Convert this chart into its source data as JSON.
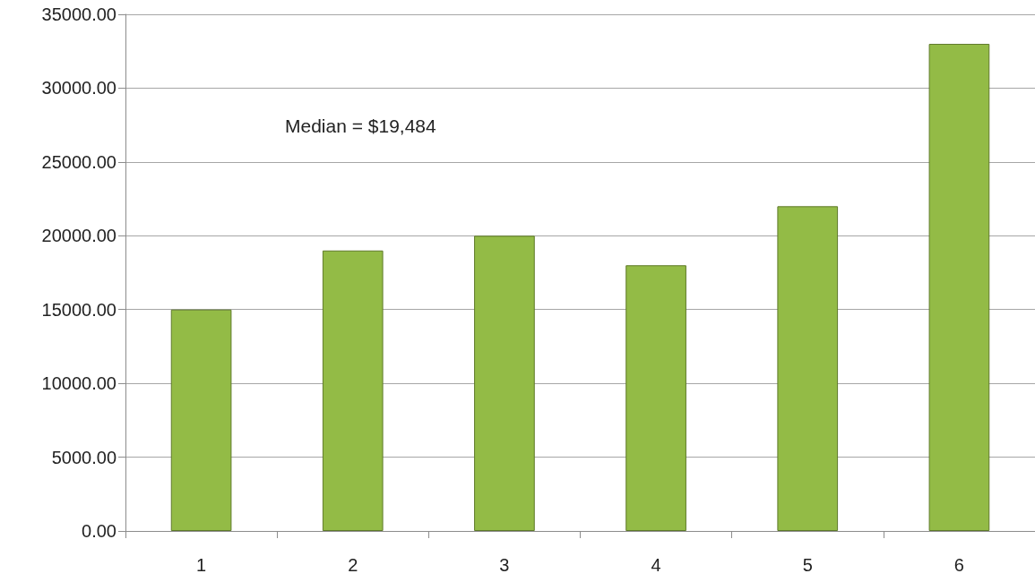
{
  "chart_data": {
    "type": "bar",
    "annotations": [
      "Median = $19,484"
    ],
    "categories": [
      "1",
      "2",
      "3",
      "4",
      "5",
      "6"
    ],
    "values": [
      15000,
      19000,
      20000,
      18000,
      22000,
      33000
    ],
    "color": "#93bb46",
    "ylim": [
      0,
      35000
    ],
    "yticks": [
      {
        "value": 0,
        "label": "0.00"
      },
      {
        "value": 5000,
        "label": "5000.00"
      },
      {
        "value": 10000,
        "label": "10000.00"
      },
      {
        "value": 15000,
        "label": "15000.00"
      },
      {
        "value": 20000,
        "label": "20000.00"
      },
      {
        "value": 25000,
        "label": "25000.00"
      },
      {
        "value": 30000,
        "label": "30000.00"
      },
      {
        "value": 35000,
        "label": "35000.00"
      }
    ],
    "grid": "y"
  }
}
